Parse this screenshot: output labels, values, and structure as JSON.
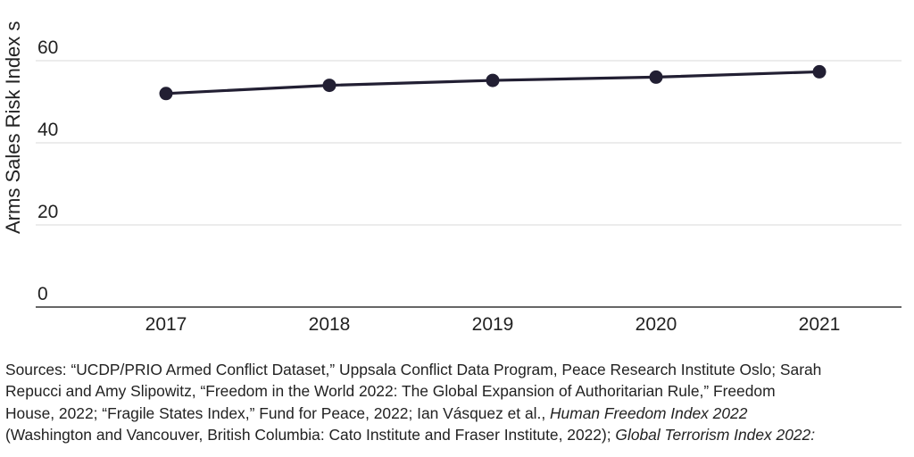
{
  "chart_data": {
    "type": "line",
    "categories": [
      "2017",
      "2018",
      "2019",
      "2020",
      "2021"
    ],
    "series": [
      {
        "name": "",
        "values": [
          52,
          54,
          55.2,
          56,
          57.3
        ],
        "color": "#221f33"
      }
    ],
    "yticks": [
      0,
      20,
      40,
      60
    ],
    "ylabel": "Arms Sales Risk Index s",
    "xlabel": "",
    "title": "",
    "ylim": [
      0,
      80
    ],
    "grid": true,
    "gridColor": "#d9d9d9",
    "axisColor": "#333333"
  },
  "sources": {
    "line1": "Sources: “UCDP/PRIO Armed Conflict Dataset,” Uppsala Conflict Data Program, Peace Research Institute Oslo; Sarah",
    "line2": "Repucci and Amy Slipowitz, “Freedom in the World 2022: The Global Expansion of Authoritarian Rule,” Freedom",
    "line3a": "House, 2022; “Fragile States Index,” Fund for Peace, 2022; Ian Vásquez et al., ",
    "line3b": "Human Freedom Index 2022",
    "line4a": "(Washington and Vancouver, British Columbia: Cato Institute and Fraser Institute, 2022); ",
    "line4b": "Global Terrorism Index 2022:"
  }
}
